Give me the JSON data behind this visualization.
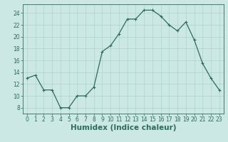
{
  "x": [
    0,
    1,
    2,
    3,
    4,
    5,
    6,
    7,
    8,
    9,
    10,
    11,
    12,
    13,
    14,
    15,
    16,
    17,
    18,
    19,
    20,
    21,
    22,
    23
  ],
  "y": [
    13,
    13.5,
    11,
    11,
    8,
    8,
    10,
    10,
    11.5,
    17.5,
    18.5,
    20.5,
    23,
    23,
    24.5,
    24.5,
    23.5,
    22,
    21,
    22.5,
    19.5,
    15.5,
    13,
    11
  ],
  "line_color": "#2d6b5e",
  "marker": "+",
  "marker_size": 4,
  "bg_color": "#cce8e4",
  "grid_color_major": "#aad4cc",
  "grid_color_minor": "#bbddd8",
  "xlabel": "Humidex (Indice chaleur)",
  "ylim": [
    7,
    25.5
  ],
  "xlim": [
    -0.5,
    23.5
  ],
  "yticks": [
    8,
    10,
    12,
    14,
    16,
    18,
    20,
    22,
    24
  ],
  "xticks": [
    0,
    1,
    2,
    3,
    4,
    5,
    6,
    7,
    8,
    9,
    10,
    11,
    12,
    13,
    14,
    15,
    16,
    17,
    18,
    19,
    20,
    21,
    22,
    23
  ],
  "tick_label_fontsize": 5.5,
  "xlabel_fontsize": 7.5,
  "axis_color": "#2d6b5e",
  "linewidth": 0.9,
  "marker_size_pt": 3.5
}
